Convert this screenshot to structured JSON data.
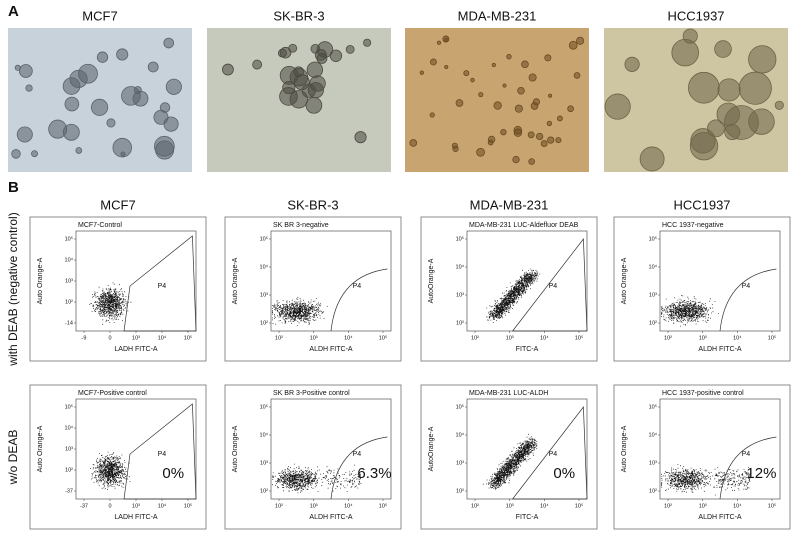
{
  "panel_a": {
    "label": "A",
    "images": [
      {
        "title": "MCF7"
      },
      {
        "title": "SK-BR-3"
      },
      {
        "title": "MDA-MB-231"
      },
      {
        "title": "HCC1937"
      }
    ]
  },
  "panel_b": {
    "label": "B",
    "columns": [
      "MCF7",
      "SK-BR-3",
      "MDA-MB-231",
      "HCC1937"
    ],
    "rows": [
      {
        "label": "with DEAB (negative control)",
        "plots": [
          {
            "title": "MCF7-Control",
            "y_label": "Auto Orange-A",
            "x_label": "LADH FITC-A",
            "gate": "P4",
            "x_ticks": [
              "-9",
              "0",
              "10³",
              "10⁴",
              "10⁵"
            ],
            "y_ticks": [
              "-14",
              "10²",
              "10³",
              "10⁴",
              "10⁵"
            ]
          },
          {
            "title": "SK BR 3-negative",
            "y_label": "Auto Orange-A",
            "x_label": "ALDH FITC-A",
            "gate": "P4",
            "x_ticks": [
              "10²",
              "10³",
              "10⁴",
              "10⁵"
            ],
            "y_ticks": [
              "10²",
              "10³",
              "10⁴",
              "10⁵"
            ]
          },
          {
            "title": "MDA-MB-231 LUC-Aldefluor DEAB",
            "y_label": "AutoOrange-A",
            "x_label": "FITC-A",
            "gate": "P4",
            "x_ticks": [
              "10²",
              "10³",
              "10⁴",
              "10⁵"
            ],
            "y_ticks": [
              "10²",
              "10³",
              "10⁴",
              "10⁵"
            ]
          },
          {
            "title": "HCC 1937-negative",
            "y_label": "Auto Orange-A",
            "x_label": "ALDH FITC-A",
            "gate": "P4",
            "x_ticks": [
              "10²",
              "10³",
              "10⁴",
              "10⁵"
            ],
            "y_ticks": [
              "10²",
              "10³",
              "10⁴",
              "10⁵"
            ]
          }
        ]
      },
      {
        "label": "w/o DEAB",
        "plots": [
          {
            "title": "MCF7-Positive control",
            "y_label": "Auto Orange-A",
            "x_label": "LADH FITC-A",
            "gate": "P4",
            "percent": "0%",
            "x_ticks": [
              "-37",
              "0",
              "10³",
              "10⁴",
              "10⁵"
            ],
            "y_ticks": [
              "-37",
              "10²",
              "10³",
              "10⁴",
              "10⁵"
            ]
          },
          {
            "title": "SK BR 3-Positive control",
            "y_label": "Auto Orange-A",
            "x_label": "ALDH FITC-A",
            "gate": "P4",
            "percent": "6.3%",
            "x_ticks": [
              "10²",
              "10³",
              "10⁴",
              "10⁵"
            ],
            "y_ticks": [
              "10²",
              "10³",
              "10⁴",
              "10⁵"
            ]
          },
          {
            "title": "MDA-MB-231 LUC-ALDH",
            "y_label": "AutoOrange-A",
            "x_label": "FITC-A",
            "gate": "P4",
            "percent": "0%",
            "x_ticks": [
              "10²",
              "10³",
              "10⁴",
              "10⁵"
            ],
            "y_ticks": [
              "10²",
              "10³",
              "10⁴",
              "10⁵"
            ]
          },
          {
            "title": "HCC 1937-positive control",
            "y_label": "Auto Orange-A",
            "x_label": "ALDH FITC-A",
            "gate": "P4",
            "percent": "12%",
            "x_ticks": [
              "10²",
              "10³",
              "10⁴",
              "10⁵"
            ],
            "y_ticks": [
              "10²",
              "10³",
              "10⁴",
              "10⁵"
            ]
          }
        ]
      }
    ]
  }
}
